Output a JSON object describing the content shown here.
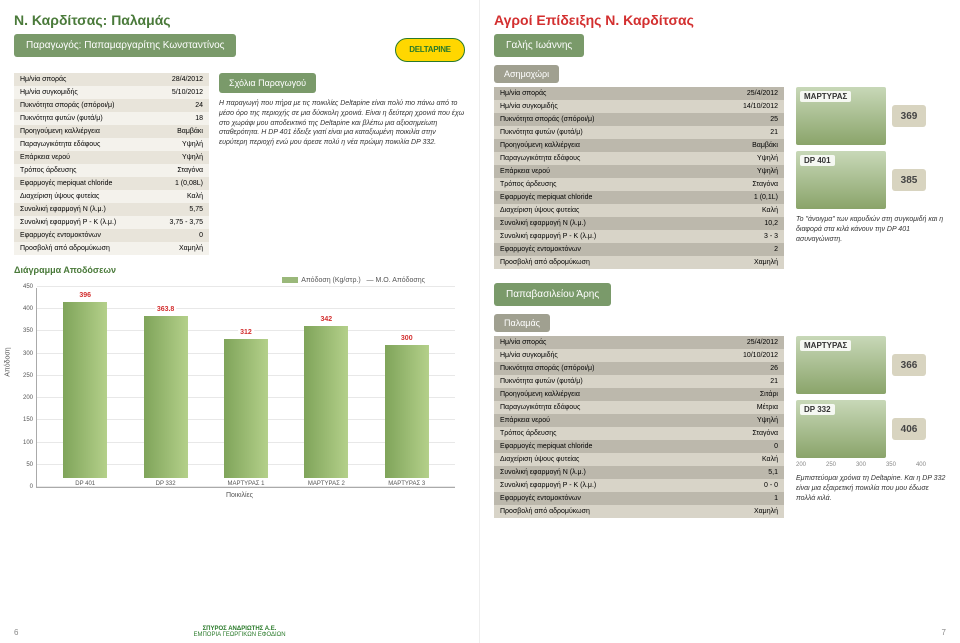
{
  "left": {
    "title": "Ν. Καρδίτσας: Παλαμάς",
    "producer": "Παραγωγός: Παπαμαργαρίτης Κωνσταντίνος",
    "logo": "DELTAPINE",
    "meta": [
      {
        "k": "Ημ/νία σποράς",
        "v": "28/4/2012"
      },
      {
        "k": "Ημ/νία συγκομιδής",
        "v": "5/10/2012"
      },
      {
        "k": "Πυκνότητα σποράς (σπόροι/μ)",
        "v": "24"
      },
      {
        "k": "Πυκνότητα φυτών (φυτά/μ)",
        "v": "18"
      },
      {
        "k": "Προηγούμενη καλλιέργεια",
        "v": "Βαμβάκι"
      },
      {
        "k": "Παραγωγικότητα εδάφους",
        "v": "Υψηλή"
      },
      {
        "k": "Επάρκεια νερού",
        "v": "Υψηλή"
      },
      {
        "k": "Τρόπος άρδευσης",
        "v": "Σταγόνα"
      },
      {
        "k": "Εφαρμογές mepiquat chloride",
        "v": "1 (0,08L)"
      },
      {
        "k": "Διαχείριση ύψους φυτείας",
        "v": "Καλή"
      },
      {
        "k": "Συνολική εφαρμογή N (λ.μ.)",
        "v": "5,75"
      },
      {
        "k": "Συνολική εφαρμογή P - K (λ.μ.)",
        "v": "3,75 - 3,75"
      },
      {
        "k": "Εφαρμογές εντομοκτόνων",
        "v": "0"
      },
      {
        "k": "Προσβολή από αδρομύκωση",
        "v": "Χαμηλή"
      }
    ],
    "comment_title": "Σχόλια Παραγωγού",
    "comment_text": "Η παραγωγή που πήρα με τις ποικιλίες Deltapine είναι πολύ πιο πάνω από το μέσο όρο της περιοχής σε μια δύσκολη χρονιά. Είναι η δεύτερη χρονιά που έχω στο χωράφι μου αποδεικτικό της Deltapine και βλέπω μια αξιοσημείωτη σταθερότητα. Η DP 401 έδειξε γιατί είναι μια καταξιωμένη ποικιλία στην ευρύτερη περιοχή ενώ μου άρεσε πολύ η νέα πρώιμη ποικιλία DP 332.",
    "chart_title": "Διάγραμμα Αποδόσεων",
    "legend_a": "Απόδοση (Kg/στρ.)",
    "legend_b": "Μ.Ο. Απόδοσης",
    "xlabel": "Ποικιλίες",
    "ylabel": "Απόδοση",
    "chart": {
      "ymax": 450,
      "ystep": 50,
      "bars": [
        {
          "label": "DP 401",
          "value": 396
        },
        {
          "label": "DP 332",
          "value": 363.8
        },
        {
          "label": "ΜΑΡΤΥΡΑΣ 1",
          "value": 312
        },
        {
          "label": "ΜΑΡΤΥΡΑΣ 2",
          "value": 342
        },
        {
          "label": "ΜΑΡΤΥΡΑΣ 3",
          "value": 300
        }
      ]
    },
    "pagenum": "6",
    "footer": "ΣΠΥΡΟΣ ΑΝΔΡΙΩΤΗΣ Α.Ε.",
    "footer2": "ΕΜΠΟΡΙΑ ΓΕΩΡΓΙΚΩΝ ΕΦΟΔΙΩΝ"
  },
  "right": {
    "title": "Αγροί Επίδειξης Ν. Καρδίτσας",
    "blocks": [
      {
        "producer": "Γαλής Ιωάννης",
        "location": "Ασημοχώρι",
        "meta": [
          {
            "k": "Ημ/νία σποράς",
            "v": "25/4/2012"
          },
          {
            "k": "Ημ/νία συγκομιδής",
            "v": "14/10/2012"
          },
          {
            "k": "Πυκνότητα σποράς (σπόροι/μ)",
            "v": "25"
          },
          {
            "k": "Πυκνότητα φυτών (φυτά/μ)",
            "v": "21"
          },
          {
            "k": "Προηγούμενη καλλιέργεια",
            "v": "Βαμβάκι"
          },
          {
            "k": "Παραγωγικότητα εδάφους",
            "v": "Υψηλή"
          },
          {
            "k": "Επάρκεια νερού",
            "v": "Υψηλή"
          },
          {
            "k": "Τρόπος άρδευσης",
            "v": "Σταγόνα"
          },
          {
            "k": "Εφαρμογές mepiquat chloride",
            "v": "1 (0,1L)"
          },
          {
            "k": "Διαχείριση ύψους φυτείας",
            "v": "Καλή"
          },
          {
            "k": "Συνολική εφαρμογή N (λ.μ.)",
            "v": "10,2"
          },
          {
            "k": "Συνολική εφαρμογή P - K (λ.μ.)",
            "v": "3 - 3"
          },
          {
            "k": "Εφαρμογές εντομοκτόνων",
            "v": "2"
          },
          {
            "k": "Προσβολή από αδρομύκωση",
            "v": "Χαμηλή"
          }
        ],
        "thumbs": [
          {
            "tag": "ΜΑΡΤΥΡΑΣ",
            "yield": "369"
          },
          {
            "tag": "DP 401",
            "yield": "385"
          }
        ],
        "note": "Το \"άνοιγμα\" των καρυδιών στη συγκομιδή και η διαφορά στα κιλά κάνουν την DP 401 ασυναγώνιστη."
      },
      {
        "producer": "Παπαβασιλείου Άρης",
        "location": "Παλαμάς",
        "meta": [
          {
            "k": "Ημ/νία σποράς",
            "v": "25/4/2012"
          },
          {
            "k": "Ημ/νία συγκομιδής",
            "v": "10/10/2012"
          },
          {
            "k": "Πυκνότητα σποράς (σπόροι/μ)",
            "v": "26"
          },
          {
            "k": "Πυκνότητα φυτών (φυτά/μ)",
            "v": "21"
          },
          {
            "k": "Προηγούμενη καλλιέργεια",
            "v": "Σιτάρι"
          },
          {
            "k": "Παραγωγικότητα εδάφους",
            "v": "Μέτρια"
          },
          {
            "k": "Επάρκεια νερού",
            "v": "Υψηλή"
          },
          {
            "k": "Τρόπος άρδευσης",
            "v": "Σταγόνα"
          },
          {
            "k": "Εφαρμογές mepiquat chloride",
            "v": "0"
          },
          {
            "k": "Διαχείριση ύψους φυτείας",
            "v": "Καλή"
          },
          {
            "k": "Συνολική εφαρμογή N (λ.μ.)",
            "v": "5,1"
          },
          {
            "k": "Συνολική εφαρμογή P - K (λ.μ.)",
            "v": "0 - 0"
          },
          {
            "k": "Εφαρμογές εντομοκτόνων",
            "v": "1"
          },
          {
            "k": "Προσβολή από αδρομύκωση",
            "v": "Χαμηλή"
          }
        ],
        "thumbs": [
          {
            "tag": "ΜΑΡΤΥΡΑΣ",
            "yield": "366"
          },
          {
            "tag": "DP 332",
            "yield": "406"
          }
        ],
        "thumb_axis": [
          "200",
          "250",
          "300",
          "350",
          "400"
        ],
        "note": "Εμπιστεύομαι χρόνια τη Deltapine. Και η DP 332 είναι μια εξαιρετική ποικιλία που μου έδωσε πολλά κιλά."
      }
    ],
    "pagenum": "7"
  }
}
